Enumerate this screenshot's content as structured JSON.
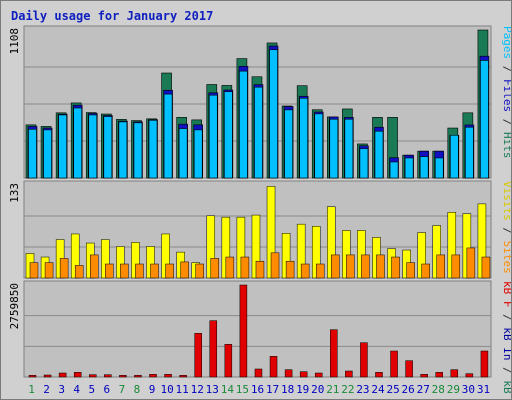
{
  "title": "Daily usage for January 2017",
  "colors": {
    "hits": "#1a7a55",
    "files": "#1010c0",
    "pages": "#00c0ff",
    "visits": "#ffff00",
    "sites": "#ff8c00",
    "kbin": "#0000a0",
    "kbout": "#1a7a55",
    "kbf": "#e00000",
    "weekday_label": "#0000c0",
    "weekend_label": "#1a8a3a",
    "panel_bg": "#c0c0c0",
    "frame_bg": "#d0d0d0",
    "title": "#1020c0"
  },
  "chart_data": [
    {
      "type": "bar",
      "name": "hits-files-pages",
      "ymax_label": "1108",
      "ylim": [
        0,
        1108
      ],
      "legend": [
        {
          "text": "Pages",
          "color": "#00c0ff"
        },
        {
          "text": " / ",
          "color": "#333333"
        },
        {
          "text": "Files",
          "color": "#1010c0"
        },
        {
          "text": " / ",
          "color": "#333333"
        },
        {
          "text": "Hits",
          "color": "#1a7a55"
        }
      ],
      "categories": [
        "1",
        "2",
        "3",
        "4",
        "5",
        "6",
        "7",
        "8",
        "9",
        "10",
        "11",
        "12",
        "13",
        "14",
        "15",
        "16",
        "17",
        "18",
        "19",
        "20",
        "21",
        "22",
        "23",
        "24",
        "25",
        "26",
        "27",
        "28",
        "29",
        "30",
        "31"
      ],
      "series": [
        {
          "name": "Hits",
          "values": [
            398,
            386,
            488,
            562,
            490,
            479,
            439,
            430,
            443,
            786,
            454,
            435,
            700,
            693,
            894,
            758,
            1011,
            539,
            691,
            511,
            457,
            517,
            255,
            454,
            454,
            171,
            201,
            201,
            374,
            488,
            1108
          ]
        },
        {
          "name": "Files",
          "values": [
            386,
            374,
            478,
            545,
            483,
            468,
            426,
            420,
            437,
            657,
            403,
            398,
            638,
            659,
            836,
            699,
            988,
            535,
            612,
            494,
            457,
            454,
            241,
            380,
            152,
            171,
            201,
            201,
            320,
            397,
            912
          ]
        },
        {
          "name": "Pages",
          "values": [
            365,
            360,
            472,
            524,
            472,
            460,
            420,
            413,
            432,
            628,
            370,
            360,
            620,
            646,
            800,
            680,
            960,
            510,
            597,
            480,
            440,
            440,
            220,
            350,
            120,
            150,
            160,
            150,
            320,
            380,
            880
          ]
        }
      ]
    },
    {
      "type": "bar",
      "name": "visits-sites",
      "ymax_label": "133",
      "ylim": [
        0,
        133
      ],
      "legend": [
        {
          "text": "Visits",
          "color": "#d8c800"
        },
        {
          "text": " / ",
          "color": "#333333"
        },
        {
          "text": "Sites",
          "color": "#ff8c00"
        }
      ],
      "categories": [
        "1",
        "2",
        "3",
        "4",
        "5",
        "6",
        "7",
        "8",
        "9",
        "10",
        "11",
        "12",
        "13",
        "14",
        "15",
        "16",
        "17",
        "18",
        "19",
        "20",
        "21",
        "22",
        "23",
        "24",
        "25",
        "26",
        "27",
        "28",
        "29",
        "30",
        "31"
      ],
      "series": [
        {
          "name": "Visits",
          "values": [
            35,
            30,
            55,
            63,
            50,
            55,
            45,
            51,
            45,
            63,
            37,
            22,
            89,
            87,
            87,
            90,
            131,
            64,
            77,
            74,
            102,
            68,
            68,
            58,
            42,
            40,
            65,
            75,
            94,
            92,
            106
          ]
        },
        {
          "name": "Sites",
          "values": [
            22,
            22,
            28,
            18,
            33,
            20,
            20,
            20,
            20,
            20,
            23,
            20,
            28,
            30,
            30,
            24,
            36,
            24,
            20,
            20,
            33,
            33,
            33,
            33,
            30,
            22,
            20,
            33,
            33,
            43,
            30
          ]
        }
      ]
    },
    {
      "type": "bar",
      "name": "kbytes",
      "ymax_label": "2759850",
      "ylim": [
        0,
        2759850
      ],
      "legend": [
        {
          "text": "kB F",
          "color": "#e00000"
        },
        {
          "text": " / ",
          "color": "#333333"
        },
        {
          "text": "kB In",
          "color": "#0000a0"
        },
        {
          "text": " / ",
          "color": "#333333"
        },
        {
          "text": "kB Out",
          "color": "#1a7a55"
        }
      ],
      "categories": [
        "1",
        "2",
        "3",
        "4",
        "5",
        "6",
        "7",
        "8",
        "9",
        "10",
        "11",
        "12",
        "13",
        "14",
        "15",
        "16",
        "17",
        "18",
        "19",
        "20",
        "21",
        "22",
        "23",
        "24",
        "25",
        "26",
        "27",
        "28",
        "29",
        "30",
        "31"
      ],
      "series": [
        {
          "name": "kB F",
          "values": [
            50000,
            60000,
            120000,
            140000,
            70000,
            70000,
            50000,
            50000,
            80000,
            80000,
            50000,
            1310000,
            1690000,
            980000,
            2759850,
            240000,
            620000,
            220000,
            160000,
            120000,
            1420000,
            180000,
            1030000,
            140000,
            780000,
            490000,
            80000,
            140000,
            220000,
            100000,
            780000
          ]
        }
      ]
    }
  ],
  "x_labels": [
    {
      "text": "1",
      "weekend": true
    },
    {
      "text": "2",
      "weekend": false
    },
    {
      "text": "3",
      "weekend": false
    },
    {
      "text": "4",
      "weekend": false
    },
    {
      "text": "5",
      "weekend": false
    },
    {
      "text": "6",
      "weekend": false
    },
    {
      "text": "7",
      "weekend": true
    },
    {
      "text": "8",
      "weekend": true
    },
    {
      "text": "9",
      "weekend": false
    },
    {
      "text": "10",
      "weekend": false
    },
    {
      "text": "11",
      "weekend": false
    },
    {
      "text": "12",
      "weekend": false
    },
    {
      "text": "13",
      "weekend": false
    },
    {
      "text": "14",
      "weekend": true
    },
    {
      "text": "15",
      "weekend": true
    },
    {
      "text": "16",
      "weekend": false
    },
    {
      "text": "17",
      "weekend": false
    },
    {
      "text": "18",
      "weekend": false
    },
    {
      "text": "19",
      "weekend": false
    },
    {
      "text": "20",
      "weekend": false
    },
    {
      "text": "21",
      "weekend": true
    },
    {
      "text": "22",
      "weekend": true
    },
    {
      "text": "23",
      "weekend": false
    },
    {
      "text": "24",
      "weekend": false
    },
    {
      "text": "25",
      "weekend": false
    },
    {
      "text": "26",
      "weekend": false
    },
    {
      "text": "27",
      "weekend": false
    },
    {
      "text": "28",
      "weekend": true
    },
    {
      "text": "29",
      "weekend": true
    },
    {
      "text": "30",
      "weekend": false
    },
    {
      "text": "31",
      "weekend": false
    }
  ]
}
